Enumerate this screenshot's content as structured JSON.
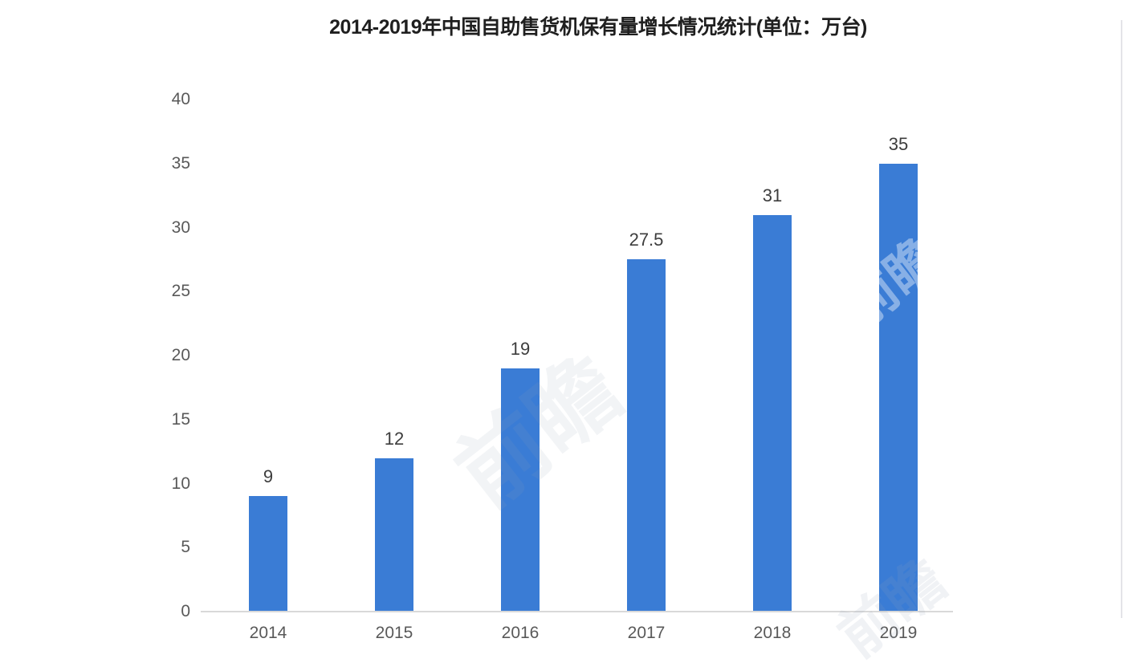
{
  "chart_data": {
    "type": "bar",
    "title": "2014-2019年中国自助售货机保有量增长情况统计(单位：万台)",
    "categories": [
      "2014",
      "2015",
      "2016",
      "2017",
      "2018",
      "2019"
    ],
    "values": [
      9,
      12,
      19,
      27.5,
      31,
      35
    ],
    "value_labels": [
      "9",
      "12",
      "19",
      "27.5",
      "31",
      "35"
    ],
    "ylim": [
      0,
      40
    ],
    "yticks": [
      0,
      5,
      10,
      15,
      20,
      25,
      30,
      35,
      40
    ],
    "xlabel": "",
    "ylabel": "",
    "grid": false,
    "legend_position": "none",
    "bar_color": "#3a7cd5",
    "axis_line_color": "#d9d9d9",
    "tick_label_color": "#595959",
    "value_label_color": "#3d3d3d",
    "title_color": "#1f1f1f"
  },
  "watermark": {
    "text": "前瞻"
  }
}
